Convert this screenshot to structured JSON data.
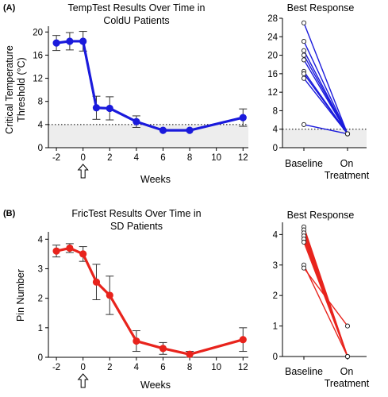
{
  "figure": {
    "panel_a_label": "(A)",
    "panel_b_label": "(B)"
  },
  "chart_data": [
    {
      "type": "line",
      "title": "TempTest Results Over Time in ColdU Patients",
      "title_lines": [
        "TempTest Results Over Time in",
        "ColdU Patients"
      ],
      "xlabel": "Weeks",
      "ylabel": "Critical Temperature Threshold (°C)",
      "ylabel_lines": [
        "Critical Temperature",
        "Threshold (°C)"
      ],
      "xlim": [
        -2.6,
        12.4
      ],
      "ylim": [
        0,
        21
      ],
      "xticks": [
        -2,
        0,
        2,
        4,
        6,
        8,
        10,
        12
      ],
      "yticks": [
        0,
        4,
        8,
        12,
        16,
        20
      ],
      "x": [
        -2,
        -1,
        0,
        1,
        2,
        4,
        6,
        8,
        12
      ],
      "y": [
        18.1,
        18.4,
        18.4,
        6.9,
        6.8,
        4.5,
        3.0,
        3.0,
        5.2
      ],
      "error": [
        1.3,
        1.5,
        1.7,
        2.0,
        2.0,
        1.0,
        0,
        0,
        1.5
      ],
      "threshold": 4,
      "shaded_below_threshold": true,
      "treatment_start_arrow_x": 0,
      "color": "#1a1adc",
      "grid": false
    },
    {
      "type": "line",
      "title": "Best Response",
      "categories": [
        "Baseline",
        "On Treatment"
      ],
      "category_lines": [
        [
          "Baseline"
        ],
        [
          "On",
          "Treatment"
        ]
      ],
      "ylim": [
        0,
        28
      ],
      "yticks": [
        0,
        4,
        8,
        12,
        16,
        20,
        24,
        28
      ],
      "series": [
        {
          "values": [
            27,
            3
          ]
        },
        {
          "values": [
            23,
            3
          ]
        },
        {
          "values": [
            21,
            3
          ]
        },
        {
          "values": [
            20,
            3
          ]
        },
        {
          "values": [
            19,
            3
          ]
        },
        {
          "values": [
            16.5,
            3
          ]
        },
        {
          "values": [
            16,
            3
          ]
        },
        {
          "values": [
            15,
            3
          ]
        },
        {
          "values": [
            5,
            3
          ]
        }
      ],
      "threshold": 4,
      "shaded_below_threshold": true,
      "color": "#1a1adc",
      "grid": false
    },
    {
      "type": "line",
      "title": "FricTest Results Over Time in SD Patients",
      "title_lines": [
        "FricTest Results Over Time in",
        "SD Patients"
      ],
      "xlabel": "Weeks",
      "ylabel": "Pin Number",
      "xlim": [
        -2.6,
        12.4
      ],
      "ylim": [
        0,
        4.25
      ],
      "xticks": [
        -2,
        0,
        2,
        4,
        6,
        8,
        10,
        12
      ],
      "yticks": [
        0,
        1,
        2,
        3,
        4
      ],
      "x": [
        -2,
        -1,
        0,
        1,
        2,
        4,
        6,
        8,
        12
      ],
      "y": [
        3.6,
        3.7,
        3.5,
        2.55,
        2.1,
        0.55,
        0.3,
        0.1,
        0.6
      ],
      "error": [
        0.2,
        0.15,
        0.25,
        0.6,
        0.65,
        0.35,
        0.2,
        0.1,
        0.4
      ],
      "treatment_start_arrow_x": 0,
      "color": "#e8231c",
      "grid": false
    },
    {
      "type": "line",
      "title": "Best Response",
      "categories": [
        "Baseline",
        "On Treatment"
      ],
      "category_lines": [
        [
          "Baseline"
        ],
        [
          "On",
          "Treatment"
        ]
      ],
      "ylim": [
        0,
        4.4
      ],
      "yticks": [
        0,
        1,
        2,
        3,
        4
      ],
      "series": [
        {
          "values": [
            4.25,
            0
          ]
        },
        {
          "values": [
            4.15,
            0
          ]
        },
        {
          "values": [
            4.05,
            0
          ]
        },
        {
          "values": [
            3.95,
            0
          ]
        },
        {
          "values": [
            3.85,
            0
          ]
        },
        {
          "values": [
            3.75,
            0
          ]
        },
        {
          "values": [
            3.0,
            0
          ]
        },
        {
          "values": [
            2.9,
            1.0
          ]
        }
      ],
      "color": "#e8231c",
      "grid": false
    }
  ]
}
